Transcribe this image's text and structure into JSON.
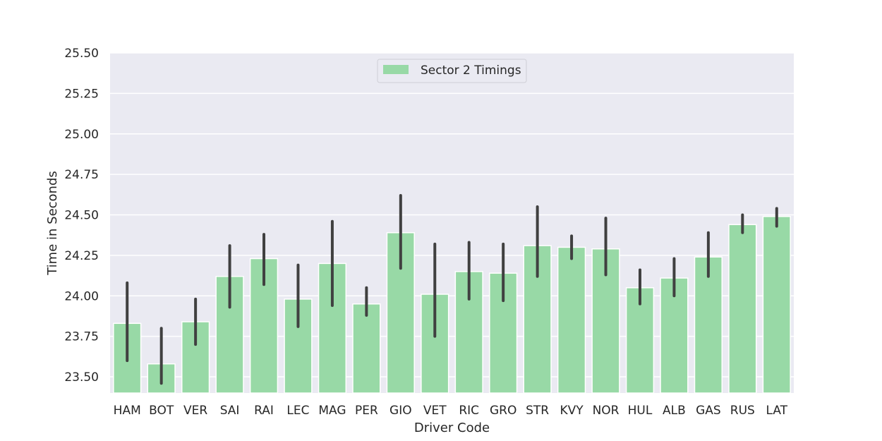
{
  "chart_data": {
    "type": "bar",
    "xlabel": "Driver Code",
    "ylabel": "Time in Seconds",
    "ylim": [
      23.4,
      25.5
    ],
    "yticks": [
      "23.50",
      "23.75",
      "24.00",
      "24.25",
      "24.50",
      "24.75",
      "25.00",
      "25.25",
      "25.50"
    ],
    "grid": true,
    "legend_position": "top-center",
    "categories": [
      "HAM",
      "BOT",
      "VER",
      "SAI",
      "RAI",
      "LEC",
      "MAG",
      "PER",
      "GIO",
      "VET",
      "RIC",
      "GRO",
      "STR",
      "KVY",
      "NOR",
      "HUL",
      "ALB",
      "GAS",
      "RUS",
      "LAT"
    ],
    "series": [
      {
        "name": "Sector 2 Timings",
        "values": [
          23.83,
          23.58,
          23.84,
          24.12,
          24.23,
          23.98,
          24.2,
          23.95,
          24.39,
          24.01,
          24.15,
          24.14,
          24.31,
          24.3,
          24.29,
          24.05,
          24.11,
          24.24,
          24.44,
          24.49
        ],
        "error_low": [
          23.6,
          23.46,
          23.7,
          23.93,
          24.07,
          23.81,
          23.94,
          23.88,
          24.17,
          23.75,
          23.98,
          23.97,
          24.12,
          24.23,
          24.13,
          23.95,
          24.0,
          24.12,
          24.39,
          24.43
        ],
        "error_high": [
          24.08,
          23.8,
          23.98,
          24.31,
          24.38,
          24.19,
          24.46,
          24.05,
          24.62,
          24.32,
          24.33,
          24.32,
          24.55,
          24.37,
          24.48,
          24.16,
          24.23,
          24.39,
          24.5,
          24.54
        ],
        "color": "#98d9a6"
      }
    ],
    "colors": {
      "plot_background": "#eaeaf2",
      "grid": "#ffffff",
      "bar": "#98d9a6",
      "errorbar": "#404040"
    }
  }
}
